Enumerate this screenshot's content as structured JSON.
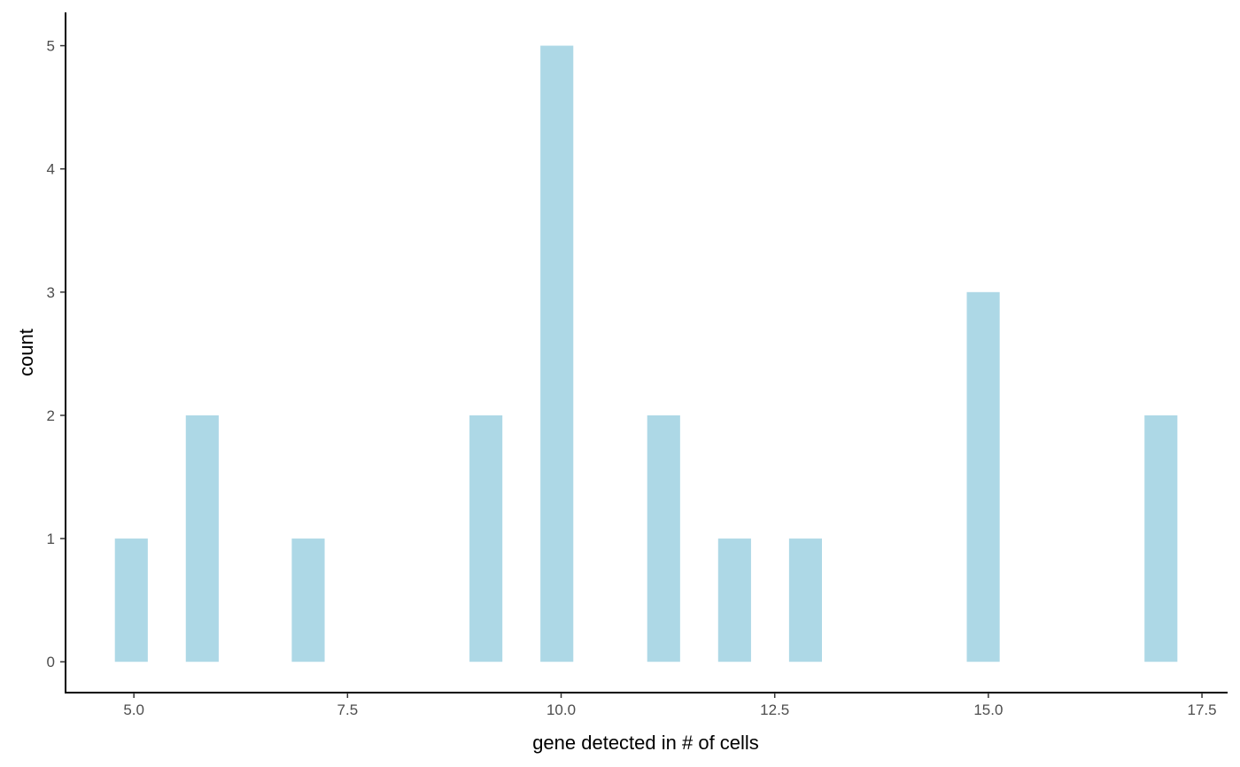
{
  "chart_data": {
    "type": "bar",
    "subtype": "histogram",
    "title": "",
    "xlabel": "gene detected in # of cells",
    "ylabel": "count",
    "bar_color": "#add8e6",
    "grid": false,
    "bins": [
      {
        "x": 4.97,
        "count": 1
      },
      {
        "x": 5.8,
        "count": 2
      },
      {
        "x": 7.04,
        "count": 1
      },
      {
        "x": 9.12,
        "count": 2
      },
      {
        "x": 9.95,
        "count": 5
      },
      {
        "x": 11.2,
        "count": 2
      },
      {
        "x": 12.03,
        "count": 1
      },
      {
        "x": 12.86,
        "count": 1
      },
      {
        "x": 14.94,
        "count": 3
      },
      {
        "x": 17.02,
        "count": 2
      }
    ],
    "bin_width": 0.385,
    "xlim": [
      4.2,
      17.8
    ],
    "ylim": [
      -0.25,
      5.27
    ],
    "x_ticks": [
      {
        "value": 5.0,
        "label": "5.0"
      },
      {
        "value": 7.5,
        "label": "7.5"
      },
      {
        "value": 10.0,
        "label": "10.0"
      },
      {
        "value": 12.5,
        "label": "12.5"
      },
      {
        "value": 15.0,
        "label": "15.0"
      },
      {
        "value": 17.5,
        "label": "17.5"
      }
    ],
    "y_ticks": [
      {
        "value": 0,
        "label": "0"
      },
      {
        "value": 1,
        "label": "1"
      },
      {
        "value": 2,
        "label": "2"
      },
      {
        "value": 3,
        "label": "3"
      },
      {
        "value": 4,
        "label": "4"
      },
      {
        "value": 5,
        "label": "5"
      }
    ]
  }
}
